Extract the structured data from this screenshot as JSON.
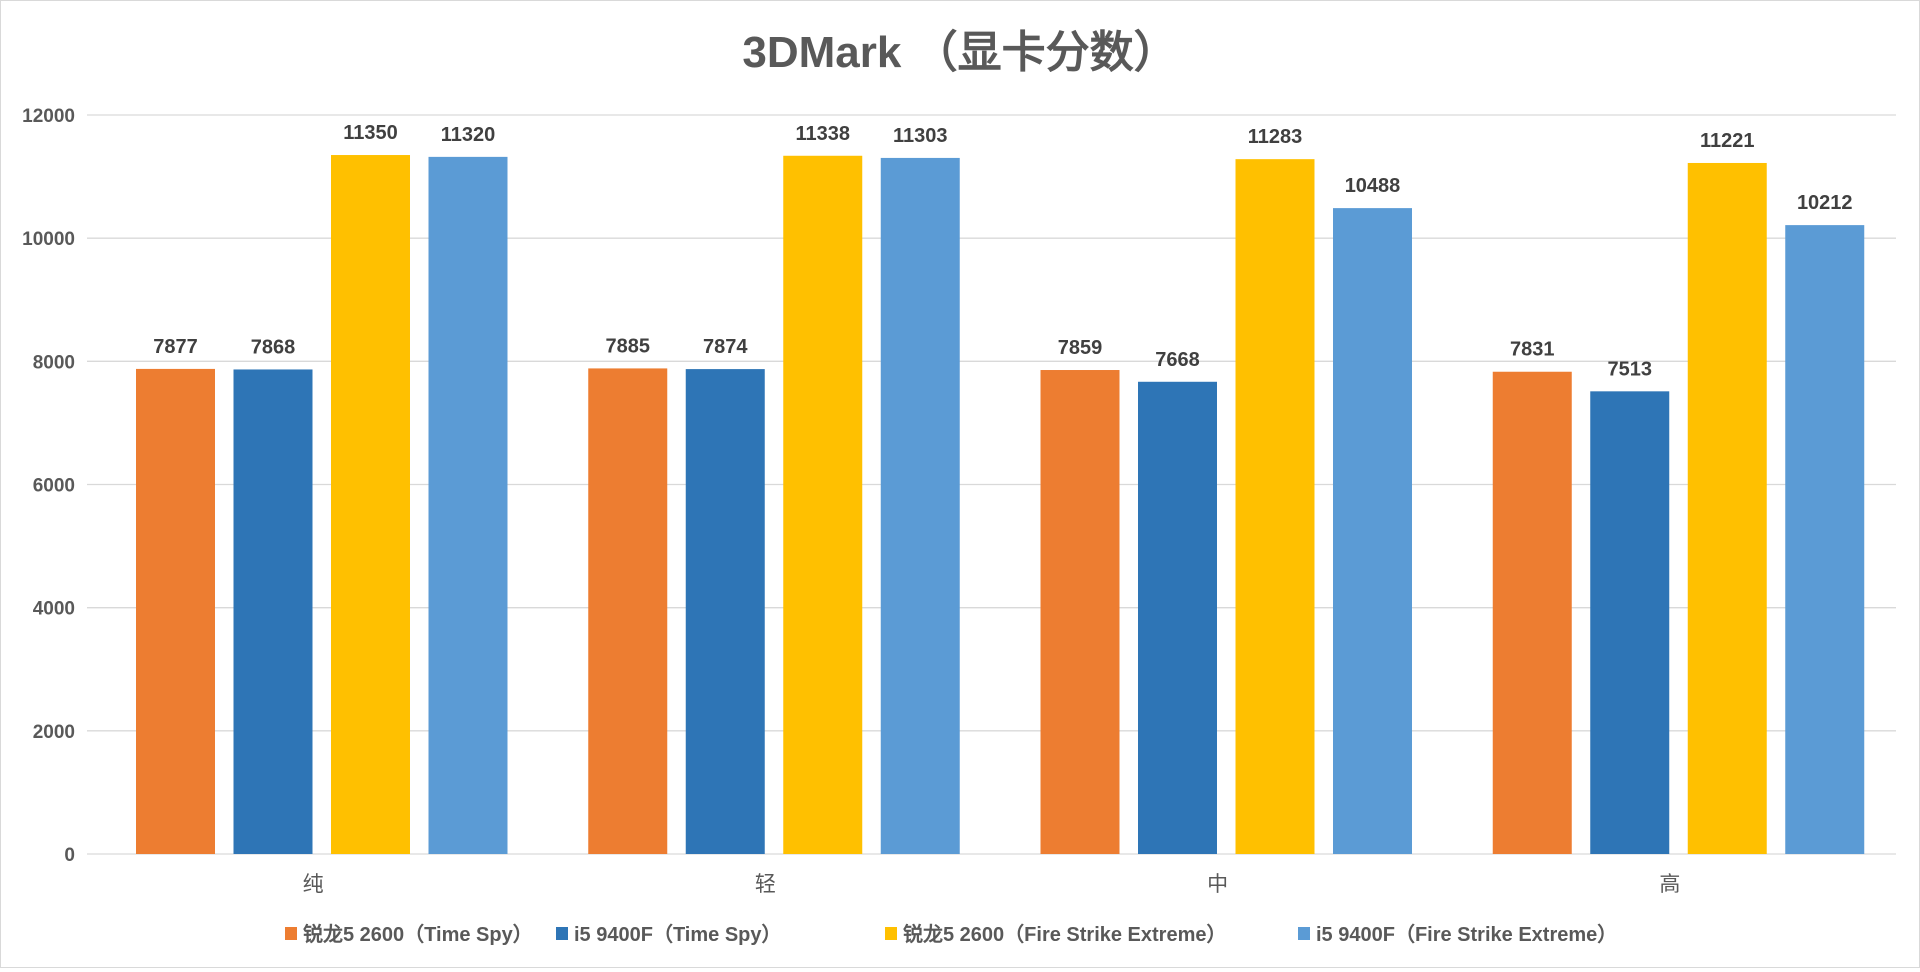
{
  "chart_data": {
    "type": "bar",
    "title": "3DMark （显卡分数）",
    "categories": [
      "纯",
      "轻",
      "中",
      "高"
    ],
    "series": [
      {
        "name": "锐龙5 2600（Time Spy）",
        "color": "#ED7D31",
        "values": [
          7877,
          7885,
          7859,
          7831
        ]
      },
      {
        "name": "i5 9400F（Time Spy）",
        "color": "#2E75B6",
        "values": [
          7868,
          7874,
          7668,
          7513
        ]
      },
      {
        "name": "锐龙5 2600（Fire Strike Extreme）",
        "color": "#FFC000",
        "values": [
          11350,
          11338,
          11283,
          11221
        ]
      },
      {
        "name": "i5 9400F（Fire Strike Extreme）",
        "color": "#5B9BD5",
        "values": [
          11320,
          11303,
          10488,
          10212
        ]
      }
    ],
    "ylim": [
      0,
      12000
    ],
    "yticks": [
      0,
      2000,
      4000,
      6000,
      8000,
      10000,
      12000
    ],
    "grid": true,
    "legend_position": "bottom",
    "data_labels": true
  }
}
